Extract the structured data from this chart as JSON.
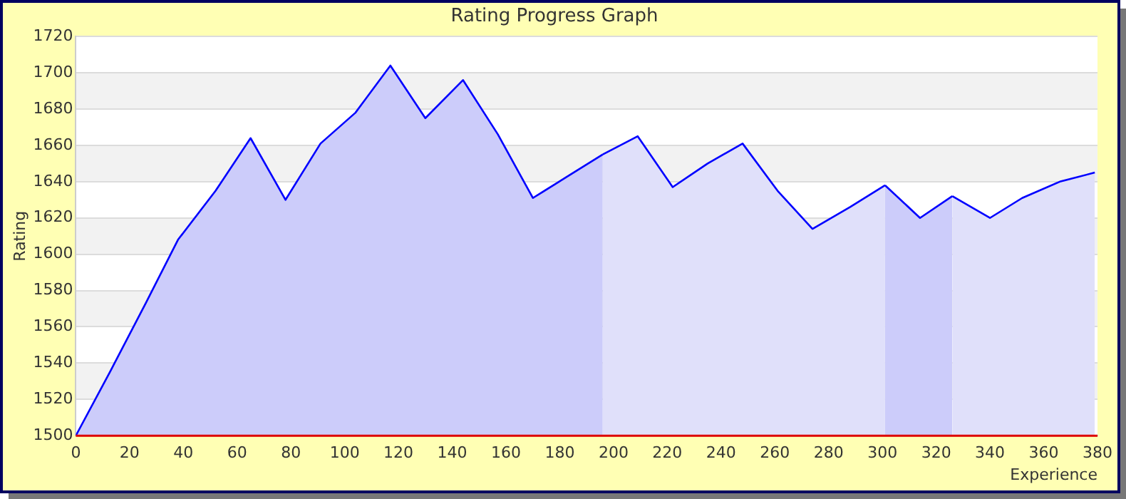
{
  "chart_data": {
    "type": "area",
    "title": "Rating Progress Graph",
    "xlabel": "Experience",
    "ylabel": "Rating",
    "series": [
      {
        "color": "#ccccfa",
        "x": [
          0,
          13,
          26,
          38,
          52,
          65,
          78,
          91,
          104,
          117,
          130,
          144,
          157,
          170,
          183,
          196
        ],
        "values": [
          1500,
          1536,
          1573,
          1608,
          1635,
          1664,
          1630,
          1661,
          1678,
          1704,
          1675,
          1696,
          1666,
          1631,
          1643,
          1655
        ]
      },
      {
        "color": "#e0e0fa",
        "x": [
          196,
          209,
          222,
          235,
          248,
          261,
          274,
          288,
          301
        ],
        "values": [
          1655,
          1665,
          1637,
          1650,
          1661,
          1635,
          1614,
          1626,
          1638
        ]
      },
      {
        "color": "#ccccfa",
        "x": [
          301,
          314,
          326
        ],
        "values": [
          1638,
          1620,
          1632
        ]
      },
      {
        "color": "#e0e0fa",
        "x": [
          326,
          340,
          352,
          366,
          379
        ],
        "values": [
          1632,
          1620,
          1631,
          1640,
          1645
        ]
      }
    ],
    "xlim": [
      0,
      380
    ],
    "xticks": [
      0,
      20,
      40,
      60,
      80,
      100,
      120,
      140,
      160,
      180,
      200,
      220,
      240,
      260,
      280,
      300,
      320,
      340,
      360,
      380
    ],
    "ylim": [
      1500,
      1720
    ],
    "yticks": [
      1500,
      1520,
      1540,
      1560,
      1580,
      1600,
      1620,
      1640,
      1660,
      1680,
      1700,
      1720
    ],
    "ref_lines": [
      {
        "axis": "y",
        "value": 1500,
        "color": "#dd0000"
      }
    ],
    "grid": true,
    "legend": false,
    "marker": "none",
    "line_style": "solid"
  }
}
